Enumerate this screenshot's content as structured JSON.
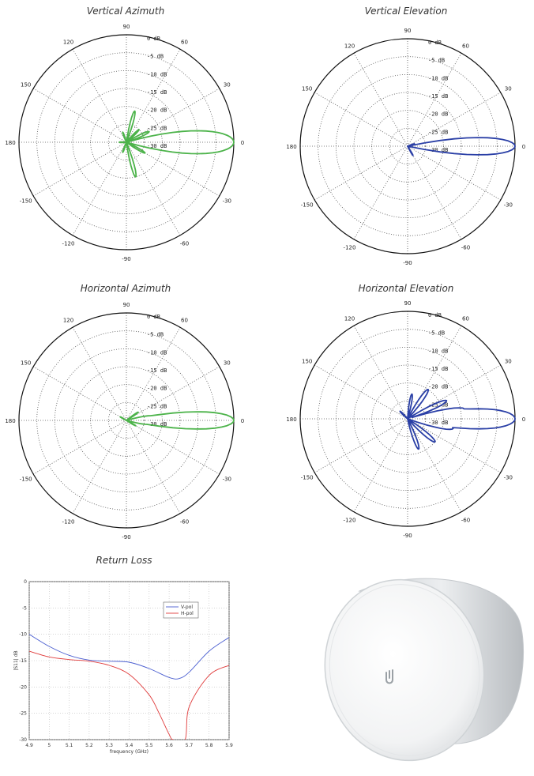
{
  "chart_data": [
    {
      "type": "polar",
      "title": "Vertical Azimuth",
      "color": "#4cb34a",
      "angle_labels": [
        "0",
        "30",
        "60",
        "90",
        "120",
        "150",
        "180",
        "-150",
        "-120",
        "-90",
        "-60",
        "-30"
      ],
      "radial_labels": [
        "0 dB",
        "-5 dB",
        "-10 dB",
        "-15 dB",
        "-20 dB",
        "-25 dB",
        "-30 dB"
      ],
      "r_range_db": [
        -30,
        0
      ],
      "lobes": [
        {
          "angle_deg": 0,
          "gain_db": 0,
          "width_deg": 8
        },
        {
          "angle_deg": 25,
          "gain_db": -23,
          "width_deg": 7
        },
        {
          "angle_deg": 45,
          "gain_db": -25,
          "width_deg": 7
        },
        {
          "angle_deg": 75,
          "gain_db": -21,
          "width_deg": 6
        },
        {
          "angle_deg": 110,
          "gain_db": -27,
          "width_deg": 8
        },
        {
          "angle_deg": -30,
          "gain_db": -24,
          "width_deg": 7
        },
        {
          "angle_deg": -75,
          "gain_db": -20,
          "width_deg": 6
        },
        {
          "angle_deg": -110,
          "gain_db": -27,
          "width_deg": 8
        },
        {
          "angle_deg": 180,
          "gain_db": -28,
          "width_deg": 10
        }
      ]
    },
    {
      "type": "polar",
      "title": "Vertical Elevation",
      "color": "#2a3fa6",
      "angle_labels": [
        "0",
        "30",
        "60",
        "90",
        "120",
        "150",
        "180",
        "-150",
        "-120",
        "-90",
        "-60",
        "-30"
      ],
      "radial_labels": [
        "0 dB",
        "-5 dB",
        "-10 dB",
        "-15 dB",
        "-20 dB",
        "-25 dB",
        "-30 dB"
      ],
      "r_range_db": [
        -30,
        0
      ],
      "lobes": [
        {
          "angle_deg": 0,
          "gain_db": 0,
          "width_deg": 6
        },
        {
          "angle_deg": -60,
          "gain_db": -27,
          "width_deg": 6
        },
        {
          "angle_deg": 20,
          "gain_db": -28,
          "width_deg": 6
        }
      ]
    },
    {
      "type": "polar",
      "title": "Horizontal Azimuth",
      "color": "#4cb34a",
      "angle_labels": [
        "0",
        "30",
        "60",
        "90",
        "120",
        "150",
        "180",
        "-150",
        "-120",
        "-90",
        "-60",
        "-30"
      ],
      "radial_labels": [
        "0 dB",
        "-5 dB",
        "-10 dB",
        "-15 dB",
        "-20 dB",
        "-25 dB",
        "-30 dB"
      ],
      "r_range_db": [
        -30,
        0
      ],
      "lobes": [
        {
          "angle_deg": 0,
          "gain_db": 0,
          "width_deg": 6
        },
        {
          "angle_deg": 10,
          "gain_db": -23,
          "width_deg": 6
        },
        {
          "angle_deg": 35,
          "gain_db": -26,
          "width_deg": 6
        },
        {
          "angle_deg": -10,
          "gain_db": -24,
          "width_deg": 6
        },
        {
          "angle_deg": -30,
          "gain_db": -27,
          "width_deg": 6
        },
        {
          "angle_deg": 150,
          "gain_db": -28,
          "width_deg": 8
        }
      ]
    },
    {
      "type": "polar",
      "title": "Horizontal Elevation",
      "color": "#2a3fa6",
      "angle_labels": [
        "0",
        "30",
        "60",
        "90",
        "120",
        "150",
        "180",
        "-150",
        "-120",
        "-90",
        "-60",
        "-30"
      ],
      "radial_labels": [
        "0 dB",
        "-5 dB",
        "-10 dB",
        "-15 dB",
        "-20 dB",
        "-25 dB",
        "-30 dB"
      ],
      "r_range_db": [
        -30,
        0
      ],
      "lobes": [
        {
          "angle_deg": 0,
          "gain_db": 0,
          "width_deg": 7
        },
        {
          "angle_deg": 10,
          "gain_db": -14,
          "width_deg": 5
        },
        {
          "angle_deg": 25,
          "gain_db": -18,
          "width_deg": 6
        },
        {
          "angle_deg": 55,
          "gain_db": -20,
          "width_deg": 7
        },
        {
          "angle_deg": 80,
          "gain_db": -23,
          "width_deg": 7
        },
        {
          "angle_deg": -12,
          "gain_db": -17,
          "width_deg": 6
        },
        {
          "angle_deg": -40,
          "gain_db": -20,
          "width_deg": 7
        },
        {
          "angle_deg": -70,
          "gain_db": -21,
          "width_deg": 7
        },
        {
          "angle_deg": 135,
          "gain_db": -27,
          "width_deg": 9
        }
      ]
    },
    {
      "type": "line",
      "title": "Return Loss",
      "xlabel": "frequency (GHz)",
      "ylabel": "|S11| dB",
      "xlim": [
        4.9,
        5.9
      ],
      "ylim": [
        -30,
        0
      ],
      "x_ticks": [
        "4.9",
        "5",
        "5.1",
        "5.2",
        "5.3",
        "5.4",
        "5.5",
        "5.6",
        "5.7",
        "5.8",
        "5.9"
      ],
      "y_ticks": [
        "0",
        "-5",
        "-10",
        "-15",
        "-20",
        "-25",
        "-30"
      ],
      "legend": [
        "V-pol",
        "H-pol"
      ],
      "series": [
        {
          "name": "V-pol",
          "color": "#4a5ed0",
          "x": [
            4.9,
            5.0,
            5.1,
            5.2,
            5.3,
            5.4,
            5.5,
            5.6,
            5.65,
            5.7,
            5.8,
            5.9
          ],
          "y": [
            -10,
            -12.3,
            -14,
            -14.9,
            -15.1,
            -15.3,
            -16.5,
            -18.2,
            -18.4,
            -17.2,
            -13.2,
            -10.6
          ]
        },
        {
          "name": "H-pol",
          "color": "#e03c3c",
          "x": [
            4.9,
            5.0,
            5.1,
            5.2,
            5.3,
            5.4,
            5.5,
            5.55,
            5.6,
            5.62,
            5.68,
            5.7,
            5.8,
            5.9
          ],
          "y": [
            -13.2,
            -14.3,
            -14.8,
            -15.1,
            -15.9,
            -17.6,
            -21.5,
            -25,
            -29,
            -30,
            -30,
            -23.8,
            -17.8,
            -15.9
          ]
        }
      ]
    }
  ]
}
